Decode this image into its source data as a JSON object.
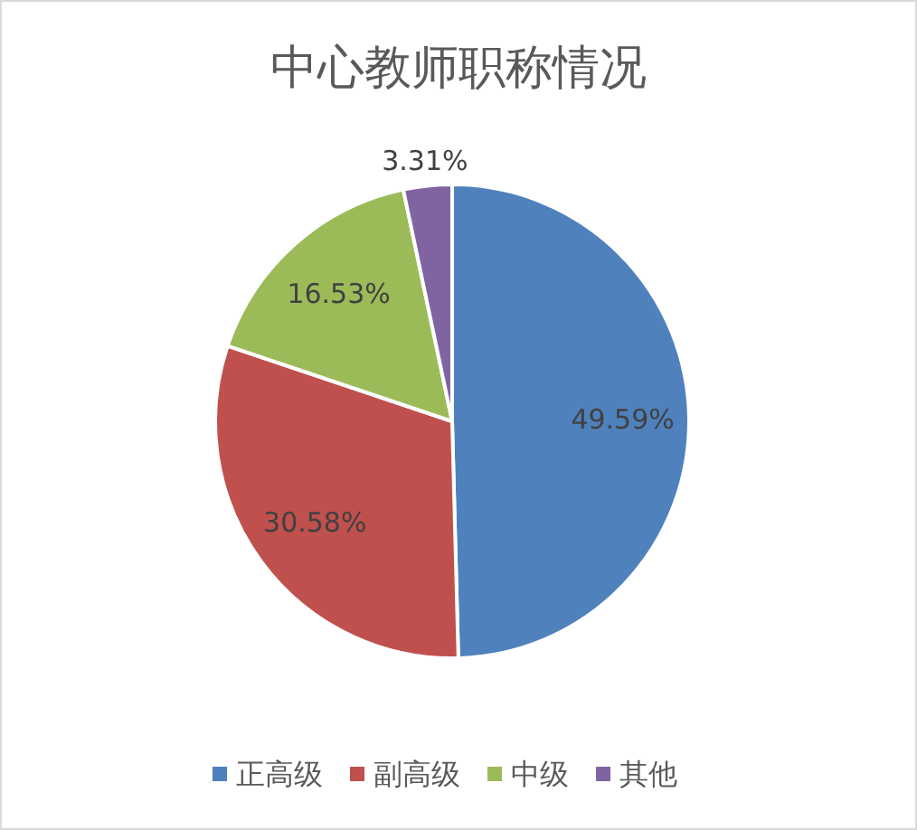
{
  "chart_data": {
    "type": "pie",
    "title": "中心教师职称情况",
    "categories": [
      "正高级",
      "副高级",
      "中级",
      "其他"
    ],
    "values": [
      49.59,
      30.58,
      16.53,
      3.31
    ],
    "value_labels": [
      "49.59%",
      "30.58%",
      "16.53%",
      "3.31%"
    ],
    "colors": [
      "#4f81bd",
      "#c0504d",
      "#9bbb59",
      "#8064a2"
    ],
    "legend": "bottom"
  }
}
